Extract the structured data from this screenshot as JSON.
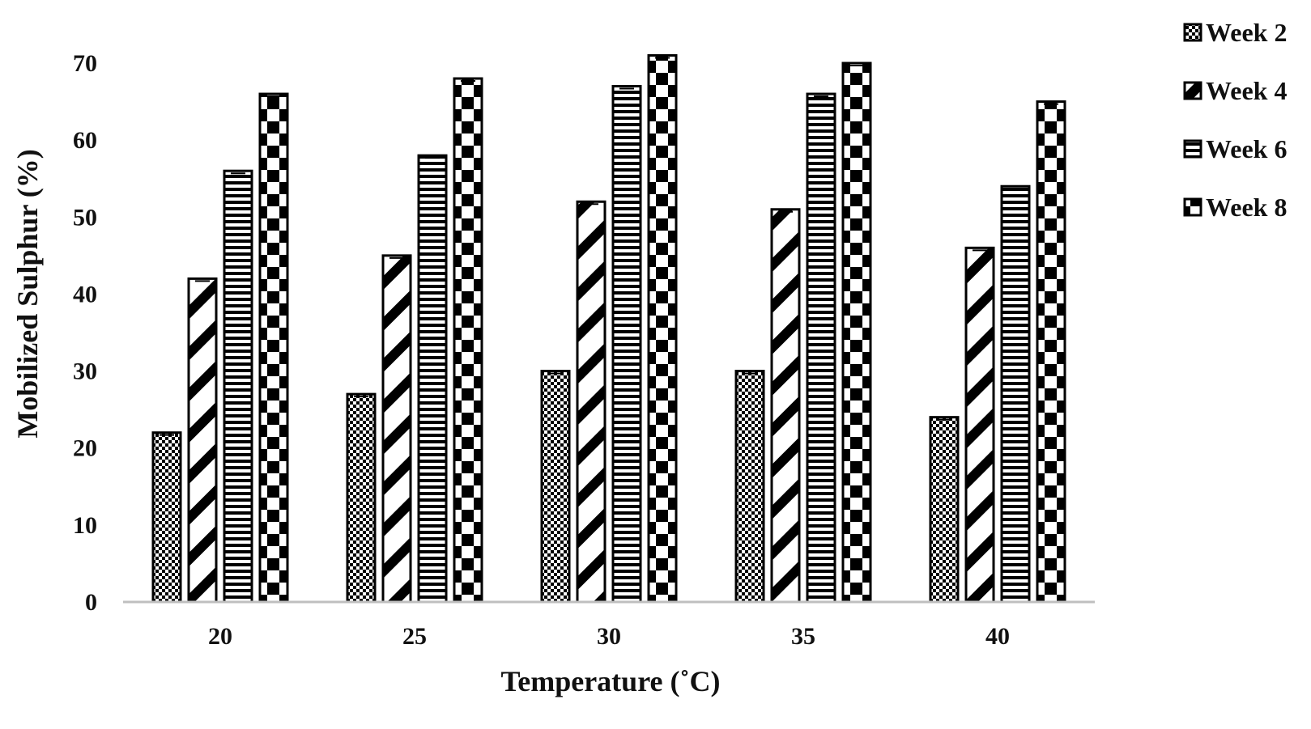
{
  "chart_data": {
    "type": "bar",
    "title": "",
    "xlabel": "Temperature (˚C)",
    "ylabel": "Mobilized Sulphur (%)",
    "categories": [
      "20",
      "25",
      "30",
      "35",
      "40"
    ],
    "ylim": [
      0,
      70
    ],
    "yticks": [
      "0",
      "10",
      "20",
      "30",
      "40",
      "50",
      "60",
      "70"
    ],
    "grid": false,
    "legend_position": "top-right",
    "series": [
      {
        "name": "Week 2",
        "pattern": "checker-fine",
        "values": [
          22,
          27,
          30,
          30,
          24
        ]
      },
      {
        "name": "Week 4",
        "pattern": "diagonal-stripes",
        "values": [
          42,
          45,
          52,
          51,
          46
        ]
      },
      {
        "name": "Week 6",
        "pattern": "horizontal-stripes",
        "values": [
          56,
          58,
          67,
          66,
          54
        ]
      },
      {
        "name": "Week 8",
        "pattern": "checker-coarse",
        "values": [
          66,
          68,
          71,
          70,
          65
        ]
      }
    ],
    "colors": {
      "ink": "#000000",
      "axis": "#bfbfbf",
      "paper": "#ffffff"
    }
  }
}
